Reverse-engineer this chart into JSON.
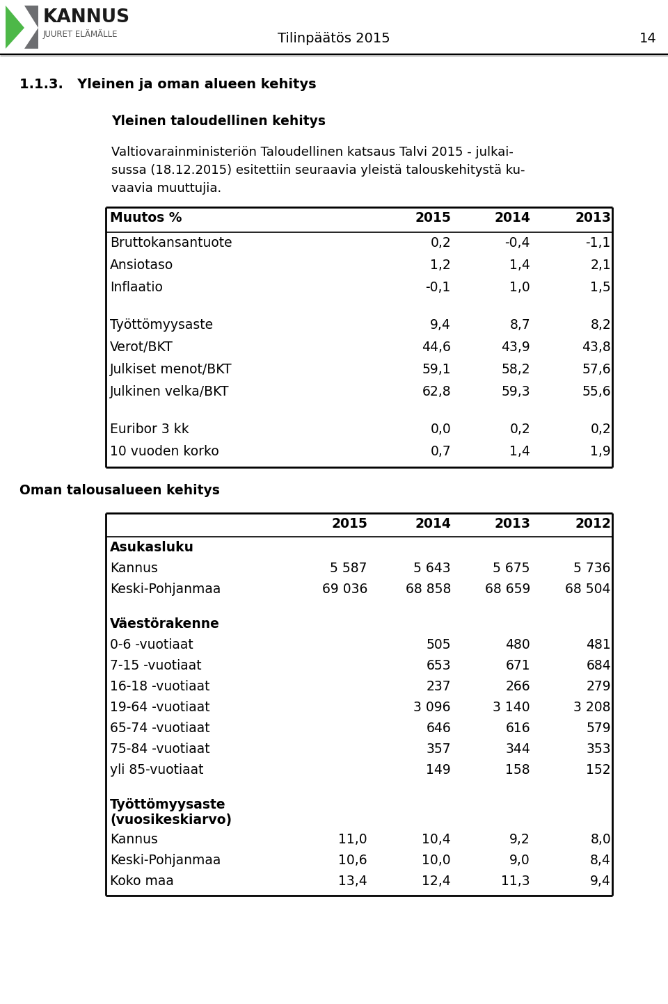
{
  "page_title": "Tilinpäätös 2015",
  "page_number": "14",
  "section_title": "1.1.3.   Yleinen ja oman alueen kehitys",
  "subsection1": "Yleinen taloudellinen kehitys",
  "body_lines": [
    "Valtiovarainministeriön Taloudellinen katsaus Talvi 2015 - julkai-",
    "sussa (18.12.2015) esitettiin seuraavia yleistä talouskehitystä ku-",
    "vaavia muuttujia."
  ],
  "table1_header": [
    "Muutos %",
    "2015",
    "2014",
    "2013"
  ],
  "table1_rows": [
    [
      "Bruttokansantuote",
      "0,2",
      "-0,4",
      "-1,1"
    ],
    [
      "Ansiotaso",
      "1,2",
      "1,4",
      "2,1"
    ],
    [
      "Inflaatio",
      "-0,1",
      "1,0",
      "1,5"
    ],
    [
      "GAP",
      "",
      "",
      ""
    ],
    [
      "Työttömyysaste",
      "9,4",
      "8,7",
      "8,2"
    ],
    [
      "Verot/BKT",
      "44,6",
      "43,9",
      "43,8"
    ],
    [
      "Julkiset menot/BKT",
      "59,1",
      "58,2",
      "57,6"
    ],
    [
      "Julkinen velka/BKT",
      "62,8",
      "59,3",
      "55,6"
    ],
    [
      "GAP",
      "",
      "",
      ""
    ],
    [
      "Euribor 3 kk",
      "0,0",
      "0,2",
      "0,2"
    ],
    [
      "10 vuoden korko",
      "0,7",
      "1,4",
      "1,9"
    ]
  ],
  "subsection2": "Oman talousalueen kehitys",
  "table2_header": [
    "",
    "2015",
    "2014",
    "2013",
    "2012"
  ],
  "table2_rows": [
    [
      "BOLD:Asukasluku",
      "",
      "",
      "",
      ""
    ],
    [
      "Kannus",
      "5 587",
      "5 643",
      "5 675",
      "5 736"
    ],
    [
      "Keski-Pohjanmaa",
      "69 036",
      "68 858",
      "68 659",
      "68 504"
    ],
    [
      "GAP",
      "",
      "",
      "",
      ""
    ],
    [
      "BOLD:Väestörakenne",
      "",
      "",
      "",
      ""
    ],
    [
      "0-6 -vuotiaat",
      "",
      "505",
      "480",
      "481"
    ],
    [
      "7-15 -vuotiaat",
      "",
      "653",
      "671",
      "684"
    ],
    [
      "16-18 -vuotiaat",
      "",
      "237",
      "266",
      "279"
    ],
    [
      "19-64 -vuotiaat",
      "",
      "3 096",
      "3 140",
      "3 208"
    ],
    [
      "65-74 -vuotiaat",
      "",
      "646",
      "616",
      "579"
    ],
    [
      "75-84 -vuotiaat",
      "",
      "357",
      "344",
      "353"
    ],
    [
      "yli 85-vuotiaat",
      "",
      "149",
      "158",
      "152"
    ],
    [
      "GAP",
      "",
      "",
      "",
      ""
    ],
    [
      "BOLD2:Työttömyysaste\n(vuosikeskiarvo)",
      "",
      "",
      "",
      ""
    ],
    [
      "Kannus",
      "11,0",
      "10,4",
      "9,2",
      "8,0"
    ],
    [
      "Keski-Pohjanmaa",
      "10,6",
      "10,0",
      "9,0",
      "8,4"
    ],
    [
      "Koko maa",
      "13,4",
      "12,4",
      "11,3",
      "9,4"
    ]
  ],
  "bg_color": "#ffffff",
  "text_color": "#000000"
}
